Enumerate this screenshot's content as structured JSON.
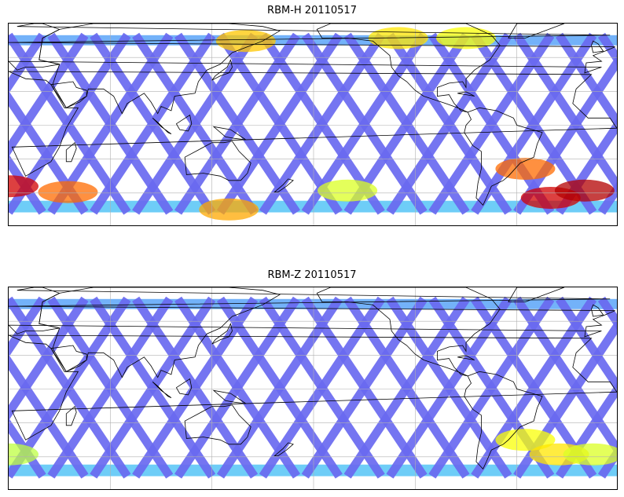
{
  "panels": [
    {
      "title": "RBM-H 20110517",
      "colors": {
        "track": "#6a6af0",
        "north_band": "#64aaf8",
        "south_band": "#5ec8f6"
      },
      "hotspots": [
        {
          "lon": 10,
          "lat": -42,
          "level": 0.95
        },
        {
          "lon": 45,
          "lat": -46,
          "level": 0.7
        },
        {
          "lon": 140,
          "lat": -58,
          "level": 0.6
        },
        {
          "lon": 150,
          "lat": 58,
          "level": 0.55
        },
        {
          "lon": -120,
          "lat": 60,
          "level": 0.5
        },
        {
          "lon": -80,
          "lat": 60,
          "level": 0.45
        },
        {
          "lon": -30,
          "lat": -50,
          "level": 0.95
        },
        {
          "lon": -45,
          "lat": -30,
          "level": 0.7
        },
        {
          "lon": -10,
          "lat": -45,
          "level": 1.0
        },
        {
          "lon": -150,
          "lat": -45,
          "level": 0.4
        }
      ]
    },
    {
      "title": "RBM-Z 20110517",
      "colors": {
        "track": "#6a6af0",
        "north_band": "#64aaf8",
        "south_band": "#5ec8f6"
      },
      "hotspots": [
        {
          "lon": 10,
          "lat": -45,
          "level": 0.35
        },
        {
          "lon": -45,
          "lat": -35,
          "level": 0.45
        },
        {
          "lon": -25,
          "lat": -45,
          "level": 0.5
        },
        {
          "lon": -5,
          "lat": -45,
          "level": 0.4
        }
      ]
    }
  ],
  "map_extent": {
    "lon": [
      10,
      370
    ],
    "lat": [
      -70,
      70
    ]
  }
}
